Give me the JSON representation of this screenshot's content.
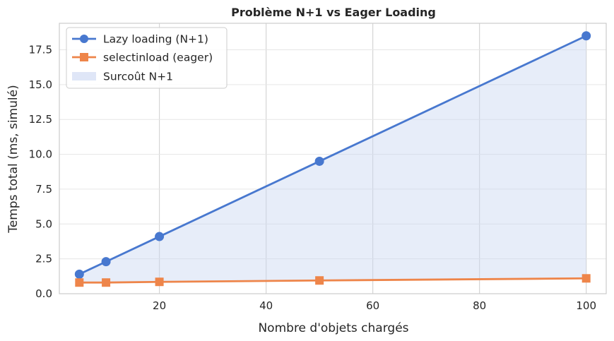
{
  "chart_data": {
    "type": "line",
    "title": "Problème N+1 vs Eager Loading",
    "xlabel": "Nombre d'objets chargés",
    "ylabel": "Temps total (ms, simulé)",
    "xlim": [
      1.25,
      103.75
    ],
    "ylim": [
      0,
      19.4
    ],
    "x_ticks": [
      20,
      40,
      60,
      80,
      100
    ],
    "x_tick_labels": [
      "20",
      "40",
      "60",
      "80",
      "100"
    ],
    "y_ticks": [
      0,
      2.5,
      5,
      7.5,
      10,
      12.5,
      15,
      17.5
    ],
    "y_tick_labels": [
      "0.0",
      "2.5",
      "5.0",
      "7.5",
      "10.0",
      "12.5",
      "15.0",
      "17.5"
    ],
    "grid": true,
    "legend_position": "top-left",
    "x": [
      5,
      10,
      20,
      50,
      100
    ],
    "series": [
      {
        "name": "Lazy loading (N+1)",
        "values": [
          1.4,
          2.3,
          4.1,
          9.5,
          18.5
        ],
        "color": "#4878cf",
        "marker": "circle"
      },
      {
        "name": "selectinload (eager)",
        "values": [
          0.8,
          0.8,
          0.85,
          0.95,
          1.1
        ],
        "color": "#ee854a",
        "marker": "square"
      }
    ],
    "fill": {
      "name": "Surcoût N+1",
      "color": "#c9d6f2",
      "between": [
        "Lazy loading (N+1)",
        "selectinload (eager)"
      ]
    }
  }
}
